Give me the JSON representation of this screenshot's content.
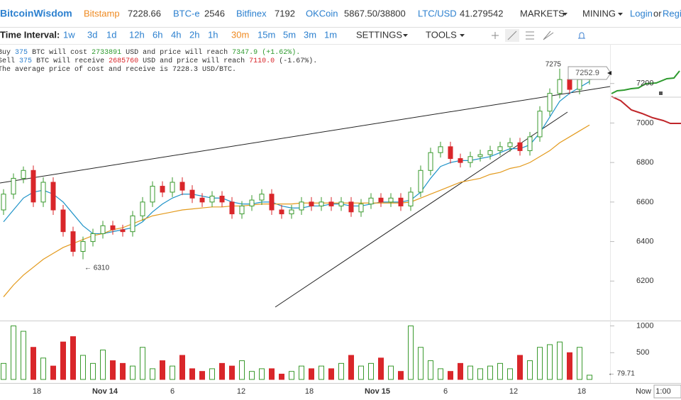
{
  "header": {
    "brand": "BitcoinWisdom",
    "markets": [
      [
        "Bitstamp",
        "7228.66"
      ],
      [
        "BTC-e",
        "2546"
      ],
      [
        "Bitfinex",
        "7192"
      ],
      [
        "OKCoin",
        "5867.50/38800"
      ],
      [
        "LTC/USD",
        "41.279542"
      ]
    ],
    "menus": [
      "MARKETS",
      "MINING"
    ],
    "login": "Login",
    "or": "or",
    "register": "Regi"
  },
  "toolbar": {
    "label": "Time Interval:",
    "intervals": [
      "1w",
      "3d",
      "1d",
      "12h",
      "6h",
      "4h",
      "2h",
      "1h",
      "30m",
      "15m",
      "5m",
      "3m",
      "1m"
    ],
    "menus": [
      "SETTINGS",
      "TOOLS"
    ]
  },
  "info": {
    "lines": [
      [
        "Buy",
        "375",
        "BTC will cost",
        "2733891",
        "USD and price will reach",
        "7347.9",
        "(+1.62%)."
      ],
      [
        "Sell",
        "375",
        "BTC will receive",
        "2685760",
        "USD and price will reach",
        "7110.0",
        "(-1.67%)."
      ],
      [
        "The average price of cost and receive is 7228.3 USD/BTC."
      ]
    ]
  },
  "chart_data": {
    "type": "candlestick",
    "up_color": "#3a9a2e",
    "down_color": "#d9262a",
    "open": [
      6560,
      6640,
      6720,
      6760,
      6600,
      6700,
      6560,
      6450,
      6350,
      6400,
      6440,
      6480,
      6460,
      6450,
      6530,
      6600,
      6680,
      6650,
      6700,
      6660,
      6620,
      6600,
      6630,
      6600,
      6540,
      6580,
      6610,
      6640,
      6560,
      6540,
      6560,
      6600,
      6580,
      6600,
      6580,
      6600,
      6550,
      6590,
      6620,
      6600,
      6620,
      6580,
      6650,
      6760,
      6850,
      6880,
      6820,
      6800,
      6830,
      6840,
      6860,
      6880,
      6900,
      6860,
      6930,
      7060,
      7150,
      7220,
      7170,
      7220
    ],
    "high": [
      6665,
      6745,
      6780,
      6785,
      6725,
      6725,
      6585,
      6475,
      6425,
      6465,
      6505,
      6505,
      6485,
      6555,
      6625,
      6705,
      6705,
      6725,
      6725,
      6685,
      6645,
      6655,
      6655,
      6625,
      6605,
      6635,
      6665,
      6665,
      6585,
      6585,
      6625,
      6625,
      6625,
      6625,
      6625,
      6625,
      6615,
      6645,
      6645,
      6645,
      6645,
      6675,
      6785,
      6875,
      6905,
      6905,
      6845,
      6855,
      6865,
      6885,
      6905,
      6925,
      6925,
      6955,
      7085,
      7175,
      7275,
      7245,
      7245,
      7265
    ],
    "low": [
      6535,
      6615,
      6695,
      6575,
      6575,
      6535,
      6425,
      6325,
      6310,
      6375,
      6415,
      6435,
      6425,
      6425,
      6505,
      6575,
      6625,
      6625,
      6635,
      6595,
      6575,
      6575,
      6575,
      6515,
      6515,
      6555,
      6585,
      6535,
      6515,
      6515,
      6535,
      6555,
      6555,
      6555,
      6555,
      6525,
      6525,
      6565,
      6575,
      6575,
      6555,
      6555,
      6625,
      6735,
      6825,
      6795,
      6775,
      6775,
      6805,
      6815,
      6835,
      6855,
      6835,
      6835,
      6905,
      7035,
      7125,
      7145,
      7145,
      7195
    ],
    "close": [
      6640,
      6720,
      6760,
      6600,
      6700,
      6560,
      6450,
      6350,
      6400,
      6440,
      6480,
      6460,
      6450,
      6530,
      6600,
      6680,
      6650,
      6700,
      6660,
      6620,
      6600,
      6630,
      6600,
      6540,
      6580,
      6610,
      6640,
      6560,
      6540,
      6560,
      6600,
      6580,
      6600,
      6580,
      6600,
      6550,
      6590,
      6620,
      6600,
      6620,
      6580,
      6650,
      6760,
      6850,
      6880,
      6820,
      6800,
      6830,
      6840,
      6860,
      6880,
      6900,
      6860,
      6930,
      7060,
      7150,
      7220,
      7170,
      7220,
      7252.9
    ],
    "volume": [
      300,
      1000,
      900,
      600,
      400,
      250,
      700,
      800,
      450,
      300,
      550,
      350,
      300,
      250,
      600,
      200,
      350,
      250,
      450,
      200,
      150,
      200,
      300,
      250,
      350,
      150,
      200,
      200,
      100,
      150,
      250,
      200,
      250,
      200,
      300,
      450,
      250,
      300,
      400,
      250,
      150,
      1000,
      600,
      350,
      200,
      150,
      300,
      250,
      200,
      250,
      300,
      200,
      450,
      350,
      600,
      650,
      700,
      500,
      600,
      79.71
    ],
    "lines": [
      {
        "color": "#1f93c8",
        "values": [
          6500,
          6560,
          6620,
          6650,
          6660,
          6640,
          6600,
          6540,
          6480,
          6440,
          6440,
          6450,
          6460,
          6470,
          6500,
          6550,
          6590,
          6620,
          6640,
          6640,
          6630,
          6620,
          6620,
          6600,
          6590,
          6590,
          6600,
          6600,
          6580,
          6570,
          6570,
          6580,
          6580,
          6590,
          6590,
          6580,
          6580,
          6590,
          6600,
          6600,
          6600,
          6610,
          6650,
          6720,
          6780,
          6800,
          6810,
          6810,
          6820,
          6830,
          6850,
          6870,
          6870,
          6890,
          6950,
          7030,
          7110,
          7150,
          7180,
          7210
        ]
      },
      {
        "color": "#e39a1c",
        "values": [
          6120,
          6180,
          6230,
          6270,
          6310,
          6340,
          6370,
          6390,
          6410,
          6430,
          6440,
          6460,
          6470,
          6490,
          6510,
          6530,
          6540,
          6550,
          6560,
          6565,
          6570,
          6575,
          6575,
          6580,
          6580,
          6585,
          6590,
          6590,
          6590,
          6590,
          6595,
          6595,
          6595,
          6595,
          6595,
          6595,
          6595,
          6595,
          6595,
          6595,
          6595,
          6600,
          6620,
          6640,
          6660,
          6680,
          6700,
          6710,
          6720,
          6740,
          6750,
          6770,
          6780,
          6800,
          6830,
          6860,
          6900,
          6930,
          6960,
          6990
        ]
      }
    ],
    "ylim": [
      6000,
      7400
    ],
    "yticks": [
      6200,
      6400,
      6600,
      6800,
      7000,
      7200
    ],
    "vlim": [
      0,
      1100
    ],
    "vticks": [
      500,
      1000
    ],
    "annotations": {
      "high": "7275",
      "low": "← 6310",
      "last": "7252.9",
      "last_volume": "← 79.71"
    },
    "x_labels": [
      "18",
      "Nov 14",
      "6",
      "12",
      "18",
      "Nov 15",
      "6",
      "12",
      "18",
      "Now",
      "1:00"
    ]
  }
}
